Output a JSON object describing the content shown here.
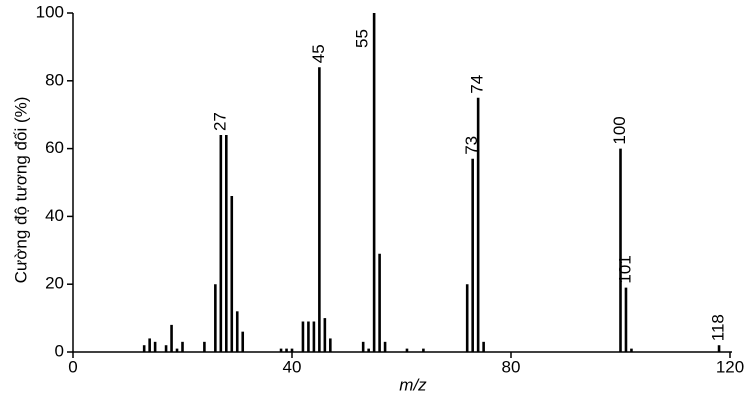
{
  "chart_data": {
    "type": "bar",
    "xlabel": "m/z",
    "ylabel": "Cường độ tương đối (%)",
    "x": [
      13,
      14,
      15,
      17,
      18,
      19,
      20,
      24,
      26,
      27,
      28,
      29,
      30,
      31,
      38,
      39,
      40,
      42,
      43,
      44,
      45,
      46,
      47,
      53,
      54,
      55,
      56,
      57,
      61,
      64,
      72,
      73,
      74,
      75,
      100,
      101,
      102,
      118
    ],
    "values": [
      2,
      4,
      3,
      2,
      8,
      1,
      3,
      3,
      20,
      64,
      64,
      46,
      12,
      6,
      1,
      1,
      1,
      9,
      9,
      9,
      84,
      10,
      4,
      3,
      1,
      100,
      29,
      3,
      1,
      1,
      20,
      57,
      75,
      3,
      60,
      19,
      1,
      2
    ],
    "annotations": [
      27,
      45,
      55,
      73,
      74,
      100,
      101,
      118
    ],
    "color": "#000000",
    "xlim": [
      0,
      120
    ],
    "xticks": [
      0,
      40,
      80,
      120
    ],
    "ylim": [
      0,
      100
    ],
    "yticks": [
      0,
      20,
      40,
      60,
      80,
      100
    ]
  }
}
